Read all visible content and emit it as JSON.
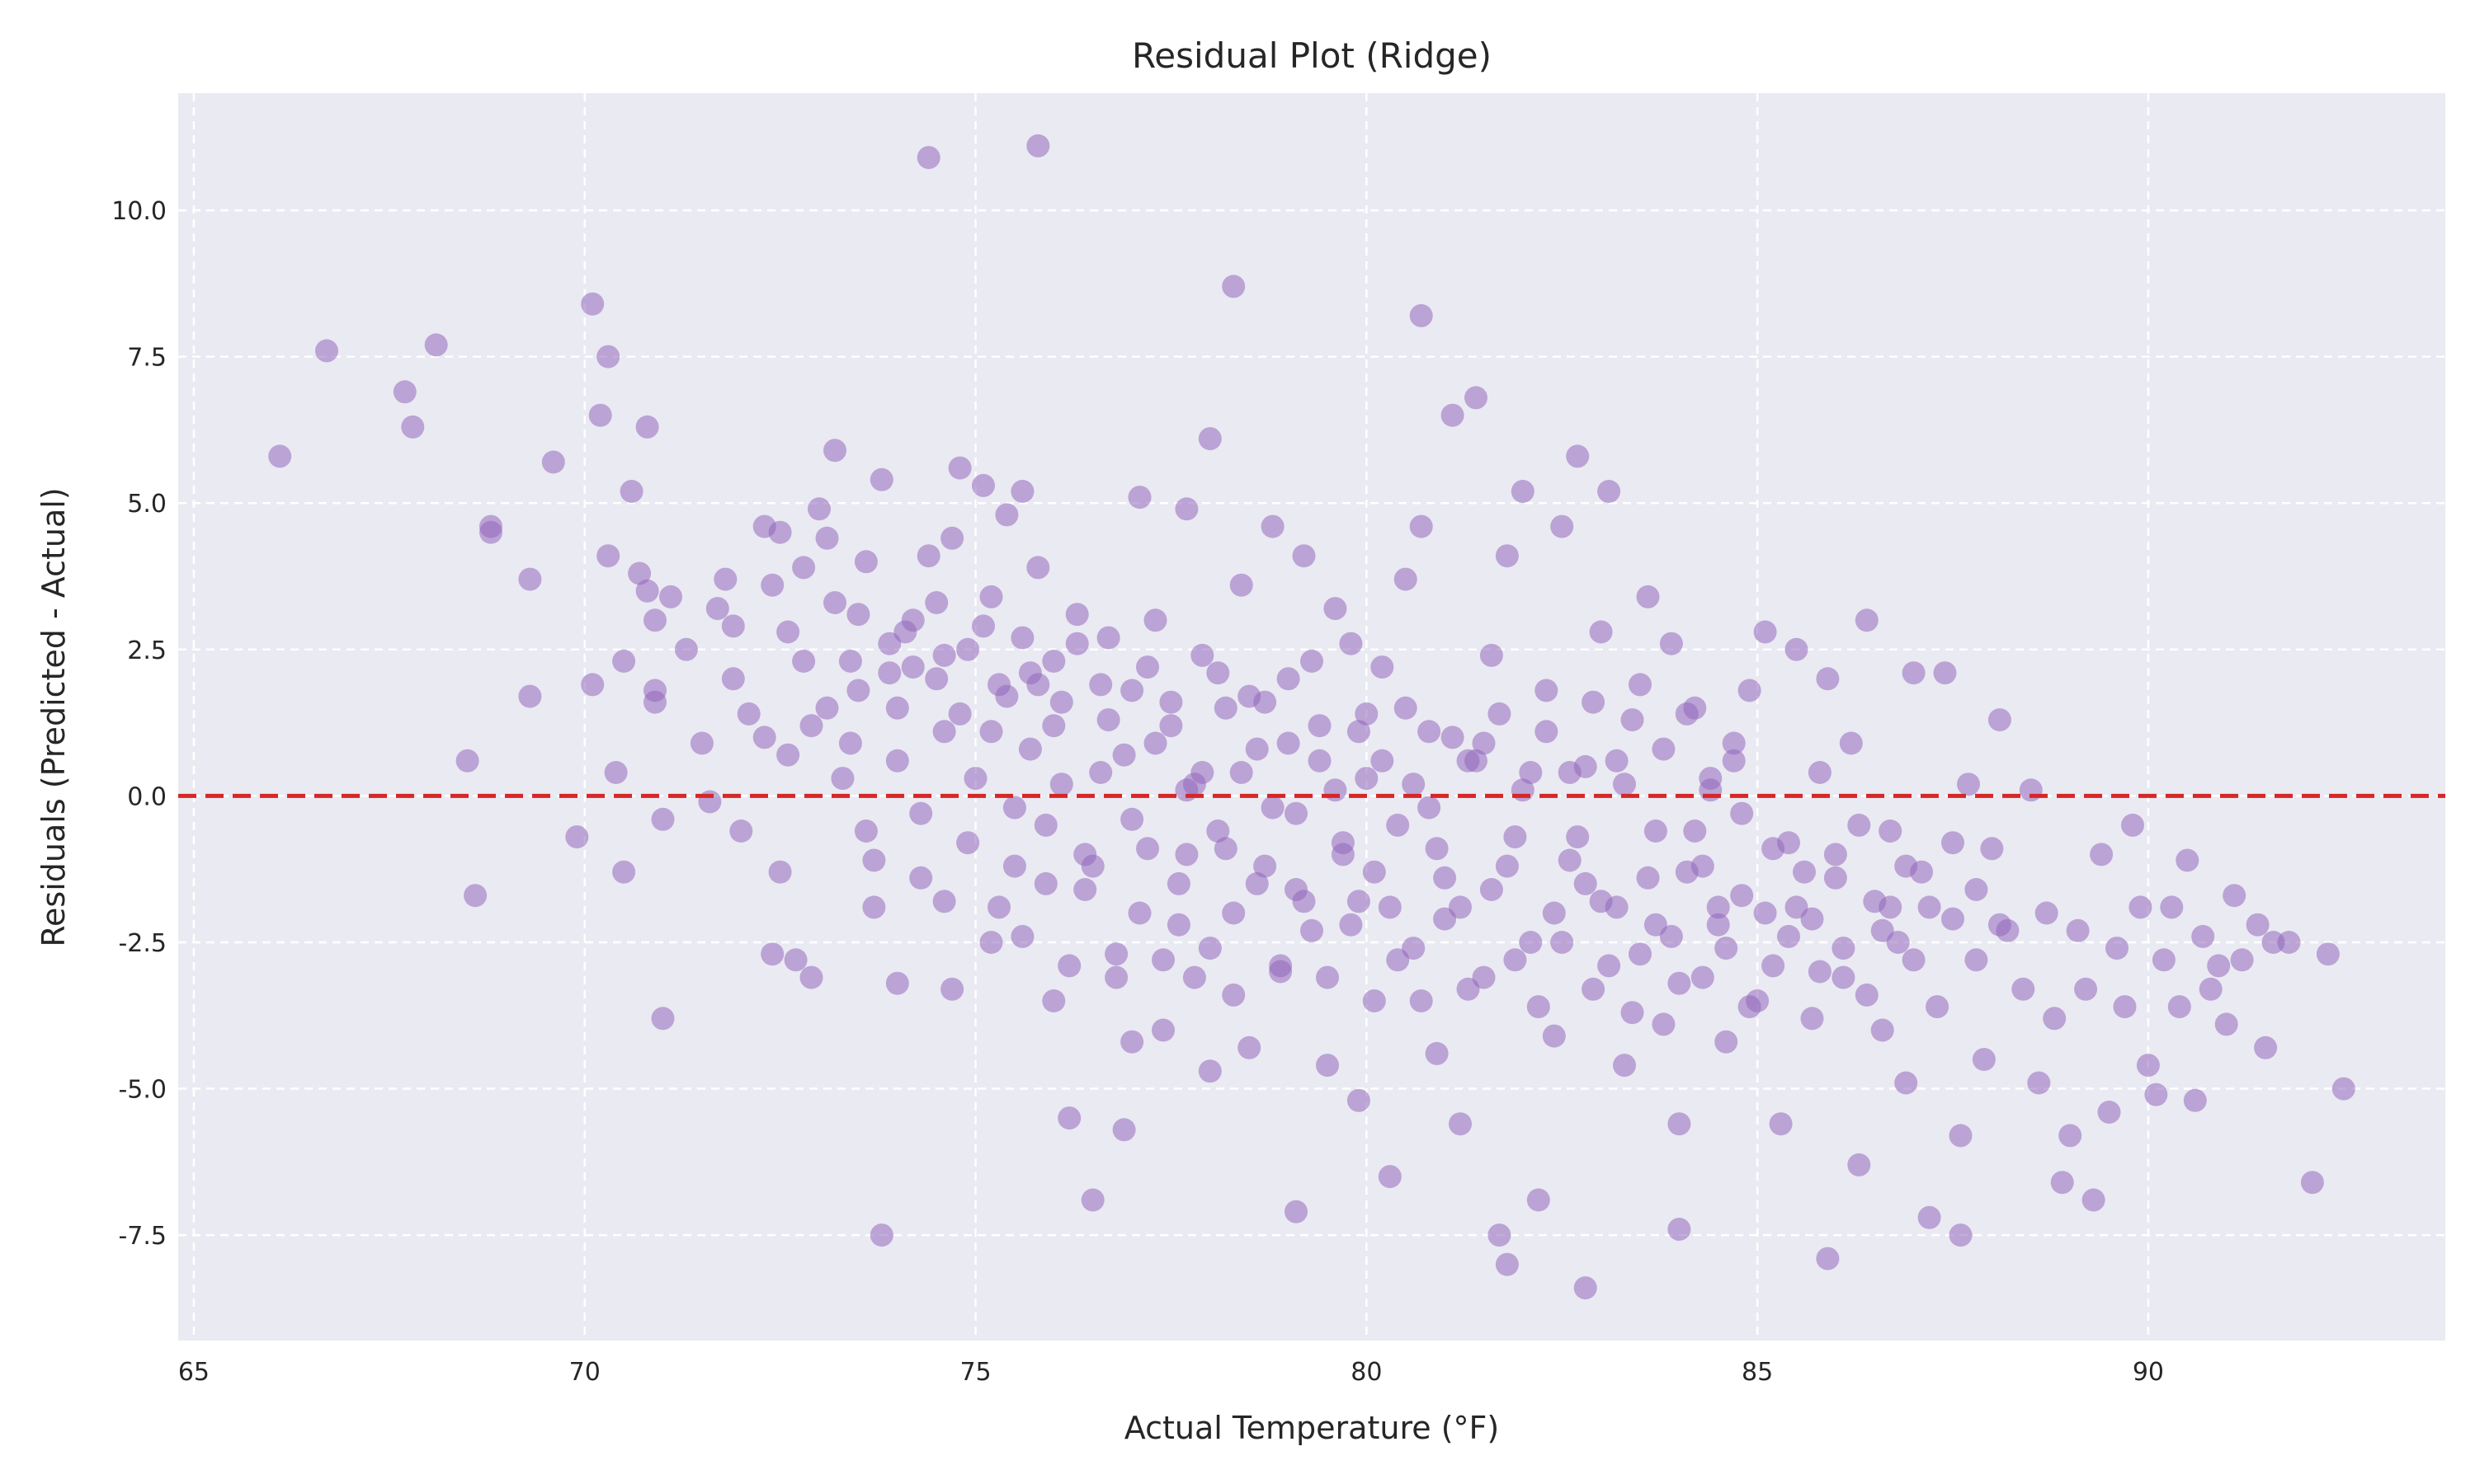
{
  "chart_data": {
    "type": "scatter",
    "title": "Residual Plot (Ridge)",
    "xlabel": "Actual Temperature (°F)",
    "ylabel": "Residuals (Predicted - Actual)",
    "xlim": [
      64.8,
      93.8
    ],
    "ylim": [
      -9.3,
      12.0
    ],
    "xticks": [
      65,
      70,
      75,
      80,
      85,
      90
    ],
    "yticks": [
      -7.5,
      -5.0,
      -2.5,
      0.0,
      2.5,
      5.0,
      7.5,
      10.0
    ],
    "grid": true,
    "reference_line": {
      "y": 0.0,
      "color": "#d62728",
      "style": "dashed"
    },
    "point_color": "#9467bd",
    "background_color": "#eaeaf2",
    "points": [
      [
        66.1,
        5.8
      ],
      [
        66.7,
        7.6
      ],
      [
        67.7,
        6.9
      ],
      [
        67.8,
        6.3
      ],
      [
        68.1,
        7.7
      ],
      [
        68.5,
        0.6
      ],
      [
        68.6,
        -1.7
      ],
      [
        68.8,
        4.6
      ],
      [
        68.8,
        4.5
      ],
      [
        69.3,
        3.7
      ],
      [
        69.3,
        1.7
      ],
      [
        69.6,
        5.7
      ],
      [
        69.9,
        -0.7
      ],
      [
        70.1,
        8.4
      ],
      [
        70.1,
        1.9
      ],
      [
        70.2,
        6.5
      ],
      [
        70.3,
        7.5
      ],
      [
        70.3,
        4.1
      ],
      [
        70.4,
        0.4
      ],
      [
        70.5,
        -1.3
      ],
      [
        70.5,
        2.3
      ],
      [
        70.6,
        5.2
      ],
      [
        70.7,
        3.8
      ],
      [
        70.8,
        6.3
      ],
      [
        70.8,
        3.5
      ],
      [
        70.9,
        3.0
      ],
      [
        70.9,
        1.8
      ],
      [
        70.9,
        1.6
      ],
      [
        71.0,
        -3.8
      ],
      [
        71.0,
        -0.4
      ],
      [
        71.1,
        3.4
      ],
      [
        71.3,
        2.5
      ],
      [
        71.5,
        0.9
      ],
      [
        71.6,
        -0.1
      ],
      [
        71.7,
        3.2
      ],
      [
        71.8,
        3.7
      ],
      [
        71.9,
        2.9
      ],
      [
        71.9,
        2.0
      ],
      [
        72.0,
        -0.6
      ],
      [
        72.1,
        1.4
      ],
      [
        72.3,
        4.6
      ],
      [
        72.3,
        1.0
      ],
      [
        72.4,
        -2.7
      ],
      [
        72.4,
        3.6
      ],
      [
        72.5,
        4.5
      ],
      [
        72.5,
        -1.3
      ],
      [
        72.6,
        2.8
      ],
      [
        72.6,
        0.7
      ],
      [
        72.7,
        -2.8
      ],
      [
        72.8,
        3.9
      ],
      [
        72.9,
        1.2
      ],
      [
        72.9,
        -3.1
      ],
      [
        73.0,
        4.9
      ],
      [
        73.1,
        4.4
      ],
      [
        73.2,
        5.9
      ],
      [
        73.2,
        3.3
      ],
      [
        73.3,
        0.3
      ],
      [
        73.4,
        2.3
      ],
      [
        73.5,
        1.8
      ],
      [
        73.6,
        -0.6
      ],
      [
        73.6,
        4.0
      ],
      [
        73.7,
        -1.9
      ],
      [
        73.8,
        5.4
      ],
      [
        73.8,
        -7.5
      ],
      [
        73.9,
        2.1
      ],
      [
        74.0,
        -3.2
      ],
      [
        74.0,
        1.5
      ],
      [
        74.1,
        2.8
      ],
      [
        74.2,
        3.0
      ],
      [
        74.3,
        -1.4
      ],
      [
        74.4,
        4.1
      ],
      [
        74.4,
        10.9
      ],
      [
        74.5,
        2.0
      ],
      [
        74.6,
        -1.8
      ],
      [
        74.6,
        1.1
      ],
      [
        74.7,
        4.4
      ],
      [
        74.7,
        -3.3
      ],
      [
        74.8,
        5.6
      ],
      [
        74.9,
        2.5
      ],
      [
        75.0,
        0.3
      ],
      [
        75.1,
        5.3
      ],
      [
        75.2,
        -2.5
      ],
      [
        75.2,
        3.4
      ],
      [
        75.3,
        1.9
      ],
      [
        75.4,
        4.8
      ],
      [
        75.5,
        -1.2
      ],
      [
        75.6,
        5.2
      ],
      [
        75.6,
        2.7
      ],
      [
        75.7,
        0.8
      ],
      [
        75.8,
        11.1
      ],
      [
        75.8,
        3.9
      ],
      [
        75.9,
        -0.5
      ],
      [
        76.0,
        2.3
      ],
      [
        76.0,
        -3.5
      ],
      [
        76.1,
        1.6
      ],
      [
        76.2,
        -5.5
      ],
      [
        76.3,
        3.1
      ],
      [
        76.4,
        -1.6
      ],
      [
        76.5,
        -6.9
      ],
      [
        76.6,
        0.4
      ],
      [
        76.7,
        2.7
      ],
      [
        76.8,
        -2.7
      ],
      [
        76.9,
        -5.7
      ],
      [
        77.0,
        1.8
      ],
      [
        77.0,
        -4.2
      ],
      [
        77.1,
        5.1
      ],
      [
        77.2,
        -0.9
      ],
      [
        77.3,
        3.0
      ],
      [
        77.4,
        -4.0
      ],
      [
        77.5,
        1.2
      ],
      [
        77.6,
        -2.2
      ],
      [
        77.7,
        4.9
      ],
      [
        77.7,
        0.1
      ],
      [
        77.8,
        -3.1
      ],
      [
        77.9,
        2.4
      ],
      [
        78.0,
        -4.7
      ],
      [
        78.0,
        6.1
      ],
      [
        78.1,
        -0.6
      ],
      [
        78.2,
        1.5
      ],
      [
        78.3,
        8.7
      ],
      [
        78.3,
        -2.0
      ],
      [
        78.4,
        3.6
      ],
      [
        78.5,
        -4.3
      ],
      [
        78.6,
        0.8
      ],
      [
        78.7,
        -1.2
      ],
      [
        78.8,
        4.6
      ],
      [
        78.9,
        -3.0
      ],
      [
        79.0,
        2.0
      ],
      [
        79.1,
        -7.1
      ],
      [
        79.1,
        -0.3
      ],
      [
        79.2,
        4.1
      ],
      [
        79.3,
        -2.3
      ],
      [
        79.4,
        1.2
      ],
      [
        79.5,
        -4.6
      ],
      [
        79.6,
        3.2
      ],
      [
        79.7,
        -0.8
      ],
      [
        79.8,
        2.6
      ],
      [
        79.9,
        -5.2
      ],
      [
        79.9,
        -1.8
      ],
      [
        80.0,
        0.3
      ],
      [
        80.1,
        -3.5
      ],
      [
        80.2,
        2.2
      ],
      [
        80.3,
        -6.5
      ],
      [
        80.4,
        -0.5
      ],
      [
        80.5,
        3.7
      ],
      [
        80.6,
        -2.6
      ],
      [
        80.7,
        4.6
      ],
      [
        80.7,
        8.2
      ],
      [
        80.8,
        1.1
      ],
      [
        80.9,
        -4.4
      ],
      [
        81.0,
        -1.4
      ],
      [
        81.1,
        6.5
      ],
      [
        81.2,
        -5.6
      ],
      [
        81.3,
        0.6
      ],
      [
        81.4,
        6.8
      ],
      [
        81.5,
        -3.1
      ],
      [
        81.6,
        2.4
      ],
      [
        81.7,
        -7.5
      ],
      [
        81.8,
        4.1
      ],
      [
        81.8,
        -8.0
      ],
      [
        81.9,
        -0.7
      ],
      [
        82.0,
        5.2
      ],
      [
        82.1,
        -2.5
      ],
      [
        82.2,
        -6.9
      ],
      [
        82.3,
        1.8
      ],
      [
        82.4,
        -4.1
      ],
      [
        82.5,
        4.6
      ],
      [
        82.6,
        -1.1
      ],
      [
        82.7,
        5.8
      ],
      [
        82.8,
        -8.4
      ],
      [
        82.8,
        0.5
      ],
      [
        82.9,
        -3.3
      ],
      [
        83.0,
        2.8
      ],
      [
        83.1,
        5.2
      ],
      [
        83.2,
        -1.9
      ],
      [
        83.3,
        -4.6
      ],
      [
        83.4,
        1.3
      ],
      [
        83.5,
        -2.7
      ],
      [
        83.6,
        3.4
      ],
      [
        83.7,
        -0.6
      ],
      [
        83.8,
        -3.9
      ],
      [
        83.9,
        2.6
      ],
      [
        84.0,
        -5.6
      ],
      [
        84.0,
        -7.4
      ],
      [
        84.1,
        -1.3
      ],
      [
        84.2,
        1.5
      ],
      [
        84.3,
        -3.1
      ],
      [
        84.4,
        0.3
      ],
      [
        84.5,
        -2.2
      ],
      [
        84.6,
        -4.2
      ],
      [
        84.7,
        0.9
      ],
      [
        84.8,
        -1.7
      ],
      [
        84.9,
        1.8
      ],
      [
        85.0,
        -3.5
      ],
      [
        85.1,
        2.8
      ],
      [
        85.2,
        -0.9
      ],
      [
        85.3,
        -5.6
      ],
      [
        85.4,
        -2.4
      ],
      [
        85.5,
        2.5
      ],
      [
        85.6,
        -1.3
      ],
      [
        85.7,
        -3.8
      ],
      [
        85.8,
        0.4
      ],
      [
        85.9,
        2.0
      ],
      [
        85.9,
        -7.9
      ],
      [
        86.0,
        -1.0
      ],
      [
        86.1,
        -3.1
      ],
      [
        86.2,
        0.9
      ],
      [
        86.3,
        -6.3
      ],
      [
        86.4,
        3.0
      ],
      [
        86.5,
        -1.8
      ],
      [
        86.6,
        -4.0
      ],
      [
        86.7,
        -0.6
      ],
      [
        86.8,
        -2.5
      ],
      [
        86.9,
        -4.9
      ],
      [
        87.0,
        2.1
      ],
      [
        87.1,
        -1.3
      ],
      [
        87.2,
        -7.2
      ],
      [
        87.3,
        -3.6
      ],
      [
        87.4,
        2.1
      ],
      [
        87.5,
        -2.1
      ],
      [
        87.6,
        -7.5
      ],
      [
        87.6,
        -5.8
      ],
      [
        87.7,
        0.2
      ],
      [
        87.8,
        -2.8
      ],
      [
        87.9,
        -4.5
      ],
      [
        88.0,
        -0.9
      ],
      [
        88.1,
        1.3
      ],
      [
        88.2,
        -2.3
      ],
      [
        88.4,
        -3.3
      ],
      [
        88.5,
        0.1
      ],
      [
        88.6,
        -4.9
      ],
      [
        88.7,
        -2.0
      ],
      [
        88.8,
        -3.8
      ],
      [
        88.9,
        -6.6
      ],
      [
        89.0,
        -5.8
      ],
      [
        89.1,
        -2.3
      ],
      [
        89.2,
        -3.3
      ],
      [
        89.3,
        -6.9
      ],
      [
        89.4,
        -1.0
      ],
      [
        89.5,
        -5.4
      ],
      [
        89.6,
        -2.6
      ],
      [
        89.7,
        -3.6
      ],
      [
        89.8,
        -0.5
      ],
      [
        89.9,
        -1.9
      ],
      [
        90.0,
        -4.6
      ],
      [
        90.1,
        -5.1
      ],
      [
        90.2,
        -2.8
      ],
      [
        90.3,
        -1.9
      ],
      [
        90.4,
        -3.6
      ],
      [
        90.5,
        -1.1
      ],
      [
        90.6,
        -5.2
      ],
      [
        90.7,
        -2.4
      ],
      [
        90.8,
        -3.3
      ],
      [
        90.9,
        -2.9
      ],
      [
        91.0,
        -3.9
      ],
      [
        91.1,
        -1.7
      ],
      [
        91.2,
        -2.8
      ],
      [
        91.4,
        -2.2
      ],
      [
        91.5,
        -4.3
      ],
      [
        91.6,
        -2.5
      ],
      [
        91.8,
        -2.5
      ],
      [
        92.1,
        -6.6
      ],
      [
        92.3,
        -2.7
      ],
      [
        92.5,
        -5.0
      ],
      [
        73.4,
        0.9
      ],
      [
        73.7,
        -1.1
      ],
      [
        74.0,
        0.6
      ],
      [
        74.3,
        -0.3
      ],
      [
        74.6,
        2.4
      ],
      [
        74.9,
        -0.8
      ],
      [
        75.2,
        1.1
      ],
      [
        75.5,
        -0.2
      ],
      [
        75.8,
        1.9
      ],
      [
        76.1,
        0.2
      ],
      [
        76.4,
        -1.0
      ],
      [
        76.7,
        1.3
      ],
      [
        77.0,
        -0.4
      ],
      [
        77.3,
        0.9
      ],
      [
        77.6,
        -1.5
      ],
      [
        77.9,
        0.4
      ],
      [
        78.2,
        -0.9
      ],
      [
        78.5,
        1.7
      ],
      [
        78.8,
        -0.2
      ],
      [
        79.1,
        -1.6
      ],
      [
        79.4,
        0.6
      ],
      [
        79.7,
        -1.0
      ],
      [
        80.0,
        1.4
      ],
      [
        80.3,
        -1.9
      ],
      [
        80.6,
        0.2
      ],
      [
        80.9,
        -0.9
      ],
      [
        81.2,
        -1.9
      ],
      [
        81.5,
        0.9
      ],
      [
        81.8,
        -1.2
      ],
      [
        82.1,
        0.4
      ],
      [
        82.4,
        -2.0
      ],
      [
        82.7,
        -0.7
      ],
      [
        83.0,
        -1.8
      ],
      [
        83.3,
        0.2
      ],
      [
        83.6,
        -1.4
      ],
      [
        83.9,
        -2.4
      ],
      [
        84.2,
        -0.6
      ],
      [
        84.5,
        -1.9
      ],
      [
        84.8,
        -0.3
      ],
      [
        85.1,
        -2.0
      ],
      [
        85.4,
        -0.8
      ],
      [
        85.7,
        -2.1
      ],
      [
        86.0,
        -1.4
      ],
      [
        86.3,
        -0.5
      ],
      [
        86.6,
        -2.3
      ],
      [
        86.9,
        -1.2
      ],
      [
        87.2,
        -1.9
      ],
      [
        87.5,
        -0.8
      ],
      [
        87.8,
        -1.6
      ],
      [
        88.1,
        -2.2
      ],
      [
        72.8,
        2.3
      ],
      [
        73.1,
        1.5
      ],
      [
        73.5,
        3.1
      ],
      [
        73.9,
        2.6
      ],
      [
        74.2,
        2.2
      ],
      [
        74.5,
        3.3
      ],
      [
        74.8,
        1.4
      ],
      [
        75.1,
        2.9
      ],
      [
        75.4,
        1.7
      ],
      [
        75.7,
        2.1
      ],
      [
        76.0,
        1.2
      ],
      [
        76.3,
        2.6
      ],
      [
        76.6,
        1.9
      ],
      [
        76.9,
        0.7
      ],
      [
        77.2,
        2.2
      ],
      [
        77.5,
        1.6
      ],
      [
        77.8,
        0.2
      ],
      [
        78.1,
        2.1
      ],
      [
        78.4,
        0.4
      ],
      [
        78.7,
        1.6
      ],
      [
        79.0,
        0.9
      ],
      [
        79.3,
        2.3
      ],
      [
        79.6,
        0.1
      ],
      [
        79.9,
        1.1
      ],
      [
        80.2,
        0.6
      ],
      [
        80.5,
        1.5
      ],
      [
        80.8,
        -0.2
      ],
      [
        81.1,
        1.0
      ],
      [
        81.4,
        0.6
      ],
      [
        81.7,
        1.4
      ],
      [
        82.0,
        0.1
      ],
      [
        82.3,
        1.1
      ],
      [
        82.6,
        0.4
      ],
      [
        82.9,
        1.6
      ],
      [
        83.2,
        0.6
      ],
      [
        83.5,
        1.9
      ],
      [
        83.8,
        0.8
      ],
      [
        84.1,
        1.4
      ],
      [
        84.4,
        0.1
      ],
      [
        84.7,
        0.6
      ],
      [
        75.3,
        -1.9
      ],
      [
        75.6,
        -2.4
      ],
      [
        75.9,
        -1.5
      ],
      [
        76.2,
        -2.9
      ],
      [
        76.5,
        -1.2
      ],
      [
        76.8,
        -3.1
      ],
      [
        77.1,
        -2.0
      ],
      [
        77.4,
        -2.8
      ],
      [
        77.7,
        -1.0
      ],
      [
        78.0,
        -2.6
      ],
      [
        78.3,
        -3.4
      ],
      [
        78.6,
        -1.5
      ],
      [
        78.9,
        -2.9
      ],
      [
        79.2,
        -1.8
      ],
      [
        79.5,
        -3.1
      ],
      [
        79.8,
        -2.2
      ],
      [
        80.1,
        -1.3
      ],
      [
        80.4,
        -2.8
      ],
      [
        80.7,
        -3.5
      ],
      [
        81.0,
        -2.1
      ],
      [
        81.3,
        -3.3
      ],
      [
        81.6,
        -1.6
      ],
      [
        81.9,
        -2.8
      ],
      [
        82.2,
        -3.6
      ],
      [
        82.5,
        -2.5
      ],
      [
        82.8,
        -1.5
      ],
      [
        83.1,
        -2.9
      ],
      [
        83.4,
        -3.7
      ],
      [
        83.7,
        -2.2
      ],
      [
        84.0,
        -3.2
      ],
      [
        84.3,
        -1.2
      ],
      [
        84.6,
        -2.6
      ],
      [
        84.9,
        -3.6
      ],
      [
        85.2,
        -2.9
      ],
      [
        85.5,
        -1.9
      ],
      [
        85.8,
        -3.0
      ],
      [
        86.1,
        -2.6
      ],
      [
        86.4,
        -3.4
      ],
      [
        86.7,
        -1.9
      ],
      [
        87.0,
        -2.8
      ]
    ]
  }
}
